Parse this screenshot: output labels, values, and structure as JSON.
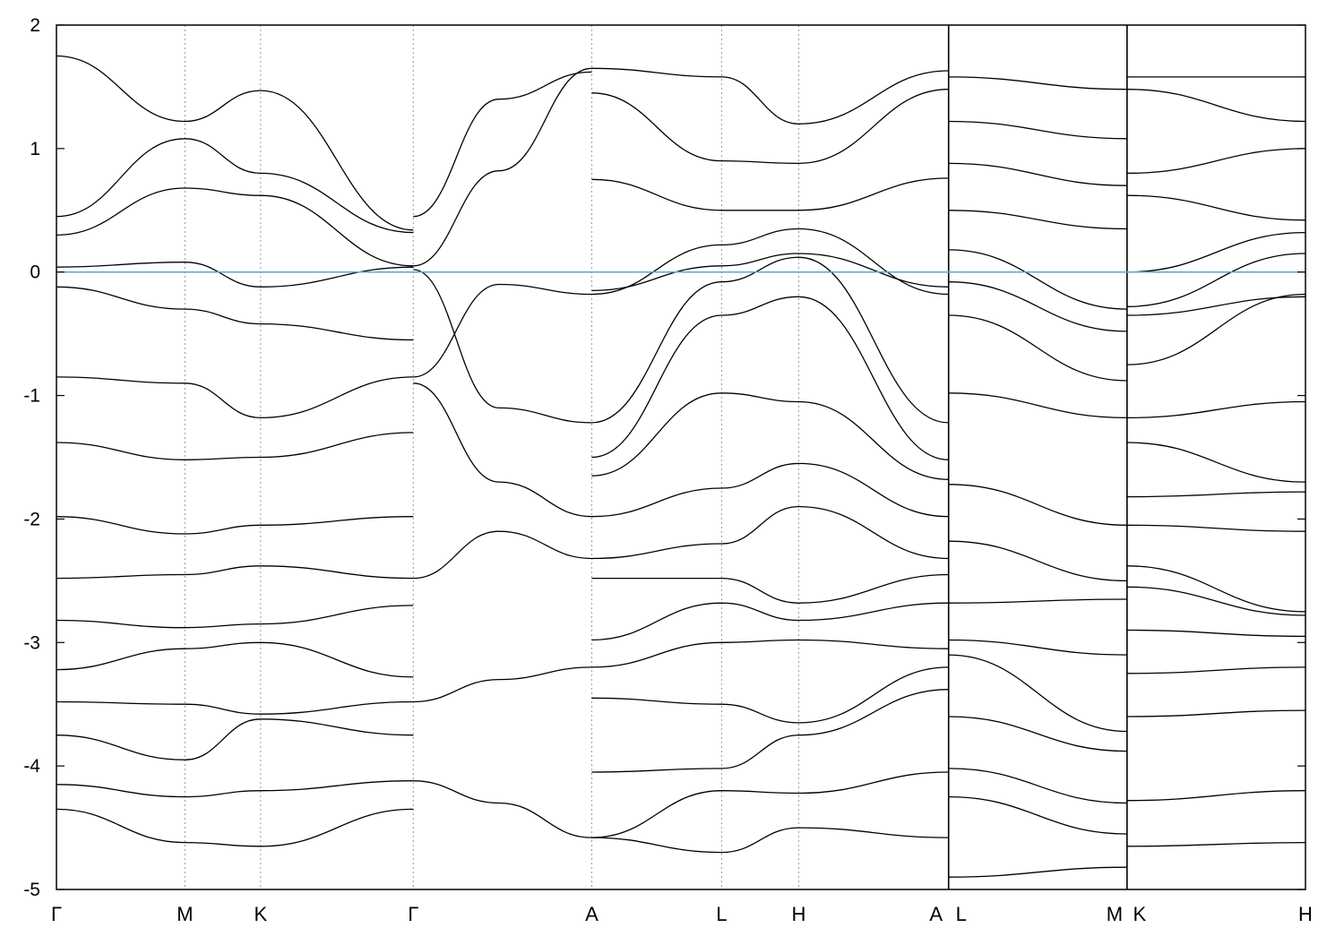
{
  "chart_data": {
    "type": "line",
    "title": "",
    "xlabel": "",
    "ylabel": "",
    "ylim": [
      -5,
      2
    ],
    "yticks": [
      2,
      1,
      0,
      -1,
      -2,
      -3,
      -4,
      -5
    ],
    "fermi_level": 0,
    "grid": "vertical dotted lines at high-symmetry points",
    "kpoints": [
      {
        "label": "Γ",
        "x": 0.0
      },
      {
        "label": "M",
        "x": 0.9
      },
      {
        "label": "K",
        "x": 1.43
      },
      {
        "label": "Γ",
        "x": 2.5
      },
      {
        "label": "A",
        "x": 3.75
      },
      {
        "label": "L",
        "x": 4.66
      },
      {
        "label": "H",
        "x": 5.2
      },
      {
        "label": "A",
        "x": 6.25
      },
      {
        "label": "L",
        "x": 6.25
      },
      {
        "label": "M",
        "x": 7.5
      },
      {
        "label": "K",
        "x": 7.5
      },
      {
        "label": "H",
        "x": 8.75
      }
    ],
    "segment_breaks": [
      6.25,
      7.5
    ],
    "series": [
      {
        "x": [
          0,
          0.9,
          1.43,
          2.5
        ],
        "y": [
          1.75,
          1.22,
          1.47,
          0.34
        ]
      },
      {
        "x": [
          0,
          0.9,
          1.43,
          2.5
        ],
        "y": [
          0.45,
          1.08,
          0.8,
          0.32
        ]
      },
      {
        "x": [
          0,
          0.9,
          1.43,
          2.5
        ],
        "y": [
          0.3,
          0.68,
          0.62,
          0.05
        ]
      },
      {
        "x": [
          0,
          0.9,
          1.43,
          2.5
        ],
        "y": [
          0.04,
          0.08,
          -0.12,
          0.04
        ]
      },
      {
        "x": [
          0,
          0.9,
          1.43,
          2.5
        ],
        "y": [
          -0.12,
          -0.3,
          -0.42,
          -0.55
        ]
      },
      {
        "x": [
          0,
          0.9,
          1.43,
          2.5
        ],
        "y": [
          -0.85,
          -0.9,
          -1.18,
          -0.85
        ]
      },
      {
        "x": [
          0,
          0.9,
          1.43,
          2.5
        ],
        "y": [
          -1.38,
          -1.52,
          -1.5,
          -1.3
        ]
      },
      {
        "x": [
          0,
          0.9,
          1.43,
          2.5
        ],
        "y": [
          -1.98,
          -2.12,
          -2.05,
          -1.98
        ]
      },
      {
        "x": [
          0,
          0.9,
          1.43,
          2.5
        ],
        "y": [
          -2.48,
          -2.45,
          -2.38,
          -2.48
        ]
      },
      {
        "x": [
          0,
          0.9,
          1.43,
          2.5
        ],
        "y": [
          -2.82,
          -2.88,
          -2.85,
          -2.7
        ]
      },
      {
        "x": [
          0,
          0.9,
          1.43,
          2.5
        ],
        "y": [
          -3.22,
          -3.05,
          -3.0,
          -3.28
        ]
      },
      {
        "x": [
          0,
          0.9,
          1.43,
          2.5
        ],
        "y": [
          -3.48,
          -3.5,
          -3.58,
          -3.48
        ]
      },
      {
        "x": [
          0,
          0.9,
          1.43,
          2.5
        ],
        "y": [
          -3.75,
          -3.95,
          -3.62,
          -3.75
        ]
      },
      {
        "x": [
          0,
          0.9,
          1.43,
          2.5
        ],
        "y": [
          -4.15,
          -4.25,
          -4.2,
          -4.12
        ]
      },
      {
        "x": [
          0,
          0.9,
          1.43,
          2.5
        ],
        "y": [
          -4.35,
          -4.62,
          -4.65,
          -4.35
        ]
      },
      {
        "x": [
          2.5,
          3.1,
          3.75
        ],
        "y": [
          0.05,
          0.82,
          1.65
        ]
      },
      {
        "x": [
          2.5,
          3.1,
          3.75
        ],
        "y": [
          0.45,
          1.4,
          1.62
        ]
      },
      {
        "x": [
          2.5,
          3.1,
          3.75
        ],
        "y": [
          -0.85,
          -0.1,
          -0.18
        ]
      },
      {
        "x": [
          2.5,
          3.1,
          3.75
        ],
        "y": [
          0.02,
          -1.1,
          -1.22
        ]
      },
      {
        "x": [
          2.5,
          3.1,
          3.75
        ],
        "y": [
          -0.9,
          -1.7,
          -1.98
        ]
      },
      {
        "x": [
          2.5,
          3.1,
          3.75
        ],
        "y": [
          -2.48,
          -2.1,
          -2.32
        ]
      },
      {
        "x": [
          2.5,
          3.1,
          3.75
        ],
        "y": [
          -3.48,
          -3.3,
          -3.2
        ]
      },
      {
        "x": [
          2.5,
          3.1,
          3.75
        ],
        "y": [
          -4.12,
          -4.3,
          -4.58
        ]
      },
      {
        "x": [
          3.75,
          4.66,
          5.2,
          6.25
        ],
        "y": [
          1.65,
          1.58,
          1.2,
          1.63
        ]
      },
      {
        "x": [
          3.75,
          4.66,
          5.2,
          6.25
        ],
        "y": [
          1.45,
          0.9,
          0.88,
          1.48
        ]
      },
      {
        "x": [
          3.75,
          4.66,
          5.2,
          6.25
        ],
        "y": [
          0.75,
          0.5,
          0.5,
          0.76
        ]
      },
      {
        "x": [
          3.75,
          4.66,
          5.2,
          6.25
        ],
        "y": [
          -0.18,
          0.22,
          0.35,
          -0.18
        ]
      },
      {
        "x": [
          3.75,
          4.66,
          5.2,
          6.25
        ],
        "y": [
          -0.15,
          0.05,
          0.15,
          -0.12
        ]
      },
      {
        "x": [
          3.75,
          4.66,
          5.2,
          6.25
        ],
        "y": [
          -1.22,
          -0.08,
          0.12,
          -1.22
        ]
      },
      {
        "x": [
          3.75,
          4.66,
          5.2,
          6.25
        ],
        "y": [
          -1.5,
          -0.35,
          -0.2,
          -1.52
        ]
      },
      {
        "x": [
          3.75,
          4.66,
          5.2,
          6.25
        ],
        "y": [
          -1.65,
          -0.98,
          -1.05,
          -1.68
        ]
      },
      {
        "x": [
          3.75,
          4.66,
          5.2,
          6.25
        ],
        "y": [
          -1.98,
          -1.75,
          -1.55,
          -1.98
        ]
      },
      {
        "x": [
          3.75,
          4.66,
          5.2,
          6.25
        ],
        "y": [
          -2.32,
          -2.2,
          -1.9,
          -2.32
        ]
      },
      {
        "x": [
          3.75,
          4.66,
          5.2,
          6.25
        ],
        "y": [
          -2.48,
          -2.48,
          -2.68,
          -2.45
        ]
      },
      {
        "x": [
          3.75,
          4.66,
          5.2,
          6.25
        ],
        "y": [
          -2.98,
          -2.68,
          -2.82,
          -2.68
        ]
      },
      {
        "x": [
          3.75,
          4.66,
          5.2,
          6.25
        ],
        "y": [
          -3.2,
          -3.0,
          -2.98,
          -3.05
        ]
      },
      {
        "x": [
          3.75,
          4.66,
          5.2,
          6.25
        ],
        "y": [
          -3.45,
          -3.5,
          -3.65,
          -3.2
        ]
      },
      {
        "x": [
          3.75,
          4.66,
          5.2,
          6.25
        ],
        "y": [
          -4.05,
          -4.02,
          -3.75,
          -3.38
        ]
      },
      {
        "x": [
          3.75,
          4.66,
          5.2,
          6.25
        ],
        "y": [
          -4.58,
          -4.2,
          -4.22,
          -4.05
        ]
      },
      {
        "x": [
          3.75,
          4.66,
          5.2,
          6.25
        ],
        "y": [
          -4.58,
          -4.7,
          -4.5,
          -4.58
        ]
      },
      {
        "x": [
          6.25,
          7.5
        ],
        "y": [
          1.58,
          1.48
        ]
      },
      {
        "x": [
          6.25,
          7.5
        ],
        "y": [
          1.22,
          1.08
        ]
      },
      {
        "x": [
          6.25,
          7.5
        ],
        "y": [
          0.88,
          0.7
        ]
      },
      {
        "x": [
          6.25,
          7.5
        ],
        "y": [
          0.5,
          0.35
        ]
      },
      {
        "x": [
          6.25,
          7.5
        ],
        "y": [
          0.18,
          -0.3
        ]
      },
      {
        "x": [
          6.25,
          7.5
        ],
        "y": [
          -0.08,
          -0.48
        ]
      },
      {
        "x": [
          6.25,
          7.5
        ],
        "y": [
          -0.35,
          -0.88
        ]
      },
      {
        "x": [
          6.25,
          7.5
        ],
        "y": [
          -0.98,
          -1.18
        ]
      },
      {
        "x": [
          6.25,
          7.5
        ],
        "y": [
          -1.72,
          -2.05
        ]
      },
      {
        "x": [
          6.25,
          7.5
        ],
        "y": [
          -2.18,
          -2.5
        ]
      },
      {
        "x": [
          6.25,
          7.5
        ],
        "y": [
          -2.68,
          -2.65
        ]
      },
      {
        "x": [
          6.25,
          7.5
        ],
        "y": [
          -2.98,
          -3.1
        ]
      },
      {
        "x": [
          6.25,
          7.5
        ],
        "y": [
          -3.1,
          -3.72
        ]
      },
      {
        "x": [
          6.25,
          7.5
        ],
        "y": [
          -3.6,
          -3.88
        ]
      },
      {
        "x": [
          6.25,
          7.5
        ],
        "y": [
          -4.02,
          -4.3
        ]
      },
      {
        "x": [
          6.25,
          7.5
        ],
        "y": [
          -4.25,
          -4.55
        ]
      },
      {
        "x": [
          6.25,
          7.5
        ],
        "y": [
          -4.9,
          -4.82
        ]
      },
      {
        "x": [
          7.5,
          8.75
        ],
        "y": [
          1.58,
          1.58
        ]
      },
      {
        "x": [
          7.5,
          8.75
        ],
        "y": [
          1.48,
          1.22
        ]
      },
      {
        "x": [
          7.5,
          8.75
        ],
        "y": [
          0.8,
          1.0
        ]
      },
      {
        "x": [
          7.5,
          8.75
        ],
        "y": [
          0.62,
          0.42
        ]
      },
      {
        "x": [
          7.5,
          8.75
        ],
        "y": [
          0.0,
          0.32
        ]
      },
      {
        "x": [
          7.5,
          8.75
        ],
        "y": [
          -0.28,
          0.15
        ]
      },
      {
        "x": [
          7.5,
          8.75
        ],
        "y": [
          -0.35,
          -0.2
        ]
      },
      {
        "x": [
          7.5,
          8.75
        ],
        "y": [
          -0.75,
          -0.18
        ]
      },
      {
        "x": [
          7.5,
          8.75
        ],
        "y": [
          -1.18,
          -1.05
        ]
      },
      {
        "x": [
          7.5,
          8.75
        ],
        "y": [
          -1.38,
          -1.7
        ]
      },
      {
        "x": [
          7.5,
          8.75
        ],
        "y": [
          -1.82,
          -1.78
        ]
      },
      {
        "x": [
          7.5,
          8.75
        ],
        "y": [
          -2.05,
          -2.1
        ]
      },
      {
        "x": [
          7.5,
          8.75
        ],
        "y": [
          -2.38,
          -2.75
        ]
      },
      {
        "x": [
          7.5,
          8.75
        ],
        "y": [
          -2.55,
          -2.78
        ]
      },
      {
        "x": [
          7.5,
          8.75
        ],
        "y": [
          -2.9,
          -2.95
        ]
      },
      {
        "x": [
          7.5,
          8.75
        ],
        "y": [
          -3.25,
          -3.2
        ]
      },
      {
        "x": [
          7.5,
          8.75
        ],
        "y": [
          -3.6,
          -3.55
        ]
      },
      {
        "x": [
          7.5,
          8.75
        ],
        "y": [
          -4.28,
          -4.2
        ]
      },
      {
        "x": [
          7.5,
          8.75
        ],
        "y": [
          -4.65,
          -4.62
        ]
      }
    ]
  }
}
